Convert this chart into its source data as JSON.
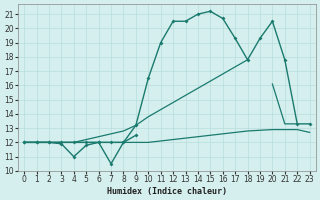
{
  "xlabel": "Humidex (Indice chaleur)",
  "xlim": [
    -0.5,
    23.5
  ],
  "ylim": [
    10,
    21.7
  ],
  "yticks": [
    10,
    11,
    12,
    13,
    14,
    15,
    16,
    17,
    18,
    19,
    20,
    21
  ],
  "xticks": [
    0,
    1,
    2,
    3,
    4,
    5,
    6,
    7,
    8,
    9,
    10,
    11,
    12,
    13,
    14,
    15,
    16,
    17,
    18,
    19,
    20,
    21,
    22,
    23
  ],
  "bg_color": "#d4efed",
  "line_color": "#1a7a6e",
  "grid_color": "#b8dede",
  "line1": {
    "x": [
      0,
      1,
      2,
      3,
      4,
      5,
      6,
      7,
      8,
      9
    ],
    "y": [
      12,
      12,
      12,
      11.9,
      11,
      11.8,
      12,
      10.5,
      12,
      12.5
    ]
  },
  "line2": {
    "x": [
      0,
      1,
      2,
      3,
      4,
      5,
      6,
      7,
      8,
      9,
      10,
      11,
      12,
      13,
      14,
      15,
      16,
      17,
      18,
      19,
      20,
      21,
      22,
      23
    ],
    "y": [
      12,
      12,
      12,
      12,
      12,
      12,
      12,
      12,
      12,
      12,
      12,
      12.1,
      12.2,
      12.3,
      12.4,
      12.5,
      12.6,
      12.7,
      12.8,
      12.85,
      12.9,
      12.9,
      12.9,
      12.7
    ]
  },
  "line3": {
    "x": [
      0,
      1,
      2,
      3,
      4,
      5,
      6,
      7,
      8,
      9,
      10,
      11,
      12,
      13,
      14,
      15,
      16,
      17,
      18,
      19,
      20,
      21,
      22
    ],
    "y": [
      12,
      12,
      12,
      12,
      12,
      12.2,
      12.4,
      12.6,
      12.8,
      13.2,
      13.8,
      14.3,
      14.8,
      15.3,
      15.8,
      16.3,
      16.8,
      17.3,
      17.8,
      null,
      16.1,
      13.3,
      13.3
    ]
  },
  "line4": {
    "x": [
      0,
      1,
      2,
      3,
      4,
      5,
      6,
      7,
      8,
      9,
      10,
      11,
      12,
      13,
      14,
      15,
      16,
      17,
      18,
      19,
      20,
      21,
      22,
      23
    ],
    "y": [
      12,
      12,
      12,
      12,
      12,
      12,
      12,
      12,
      12,
      13.2,
      16.5,
      19,
      20.5,
      20.5,
      21,
      21.2,
      20.7,
      19.3,
      17.8,
      19.3,
      20.5,
      17.8,
      13.3,
      13.3
    ]
  }
}
